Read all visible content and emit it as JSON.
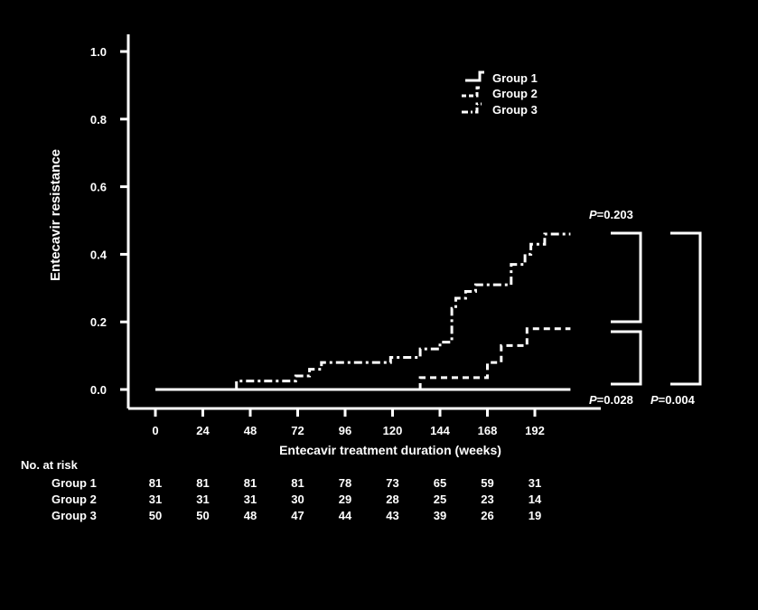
{
  "chart_data": {
    "type": "line",
    "step": true,
    "xlabel": "Entecavir treatment duration (weeks)",
    "ylabel": "Entecavir resistance",
    "xlim": [
      -12,
      216
    ],
    "ylim": [
      0,
      1.0
    ],
    "xticks": [
      0,
      24,
      48,
      72,
      96,
      120,
      144,
      168,
      192
    ],
    "yticks": [
      "0.0",
      "0.2",
      "0.4",
      "0.6",
      "0.8",
      "1.0"
    ],
    "legend_position": "top-right",
    "series": [
      {
        "name": "Group 1",
        "dash": "solid",
        "points": [
          [
            0,
            0
          ],
          [
            210,
            0
          ]
        ]
      },
      {
        "name": "Group 2",
        "dash": "dash",
        "points": [
          [
            134,
            0
          ],
          [
            134,
            0.035
          ],
          [
            168,
            0.035
          ],
          [
            168,
            0.08
          ],
          [
            175,
            0.08
          ],
          [
            175,
            0.13
          ],
          [
            188,
            0.13
          ],
          [
            188,
            0.18
          ],
          [
            210,
            0.18
          ]
        ]
      },
      {
        "name": "Group 3",
        "dash": "dashdot",
        "points": [
          [
            41,
            0
          ],
          [
            41,
            0.025
          ],
          [
            71,
            0.025
          ],
          [
            71,
            0.04
          ],
          [
            78,
            0.04
          ],
          [
            78,
            0.06
          ],
          [
            84,
            0.06
          ],
          [
            84,
            0.08
          ],
          [
            119,
            0.08
          ],
          [
            119,
            0.095
          ],
          [
            134,
            0.095
          ],
          [
            134,
            0.12
          ],
          [
            144,
            0.12
          ],
          [
            144,
            0.14
          ],
          [
            150,
            0.14
          ],
          [
            150,
            0.24
          ],
          [
            152,
            0.24
          ],
          [
            152,
            0.27
          ],
          [
            157,
            0.27
          ],
          [
            157,
            0.29
          ],
          [
            162,
            0.29
          ],
          [
            162,
            0.31
          ],
          [
            180,
            0.31
          ],
          [
            180,
            0.37
          ],
          [
            187,
            0.37
          ],
          [
            187,
            0.4
          ],
          [
            190,
            0.4
          ],
          [
            190,
            0.43
          ],
          [
            197,
            0.43
          ],
          [
            197,
            0.46
          ],
          [
            210,
            0.46
          ]
        ]
      }
    ],
    "annotations": [
      {
        "italic": "P",
        "text": "=0.203"
      },
      {
        "italic": "P",
        "text": "=0.028"
      },
      {
        "italic": "P",
        "text": "=0.004"
      }
    ]
  },
  "risk_table": {
    "title": "No. at risk",
    "rows": [
      {
        "label": "Group 1",
        "values": [
          "81",
          "81",
          "81",
          "81",
          "78",
          "73",
          "65",
          "59",
          "31"
        ]
      },
      {
        "label": "Group 2",
        "values": [
          "31",
          "31",
          "31",
          "30",
          "29",
          "28",
          "25",
          "23",
          "14"
        ]
      },
      {
        "label": "Group 3",
        "values": [
          "50",
          "50",
          "48",
          "47",
          "44",
          "43",
          "39",
          "26",
          "19"
        ]
      }
    ]
  }
}
